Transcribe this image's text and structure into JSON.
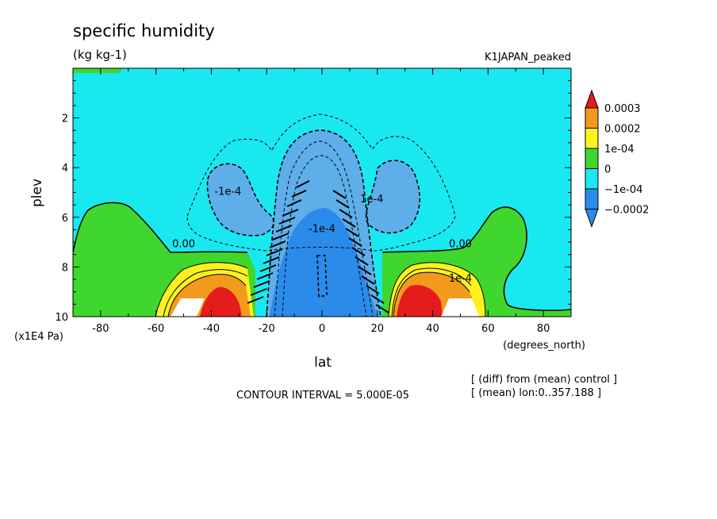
{
  "chart_data": {
    "type": "contour",
    "title": "specific humidity",
    "units": "(kg kg-1)",
    "experiment": "K1JAPAN_peaked",
    "xlabel": "lat",
    "xunits": "(degrees_north)",
    "ylabel": "plev",
    "yunits": "(x1E4 Pa)",
    "xlim": [
      -90,
      90
    ],
    "ylim": [
      10,
      0
    ],
    "x_ticks": [
      -80,
      -60,
      -40,
      -20,
      0,
      20,
      40,
      60,
      80
    ],
    "y_ticks": [
      2,
      4,
      6,
      8,
      10
    ],
    "contour_interval_text": "CONTOUR INTERVAL = 5.000E-05",
    "footnotes": [
      "[ (diff) from (mean) control ]",
      "[ (mean) lon:0..357.188 ]"
    ],
    "colorbar": {
      "labels": [
        "0.0003",
        "0.0002",
        "1e-04",
        "0",
        "−1e-04",
        "−0.0002"
      ],
      "colors": [
        "#e61b1b",
        "#f29a1c",
        "#fff21c",
        "#3fd62e",
        "#1ae8f0",
        "#2b8bea"
      ],
      "cap_top_color": "#e61b1b",
      "cap_bottom_color": "#2b8bea"
    },
    "contour_labels": [
      {
        "text": "0.00",
        "lat": -50,
        "plev": 7.2
      },
      {
        "text": "-1e-4",
        "lat": -34,
        "plev": 5.1
      },
      {
        "text": "1e-4",
        "lat": 18,
        "plev": 5.4
      },
      {
        "text": "0.00",
        "lat": 50,
        "plev": 7.2
      },
      {
        "text": "1e-4",
        "lat": 50,
        "plev": 8.6
      },
      {
        "text": "-1e-4",
        "lat": 0,
        "plev": 6.6
      }
    ]
  }
}
